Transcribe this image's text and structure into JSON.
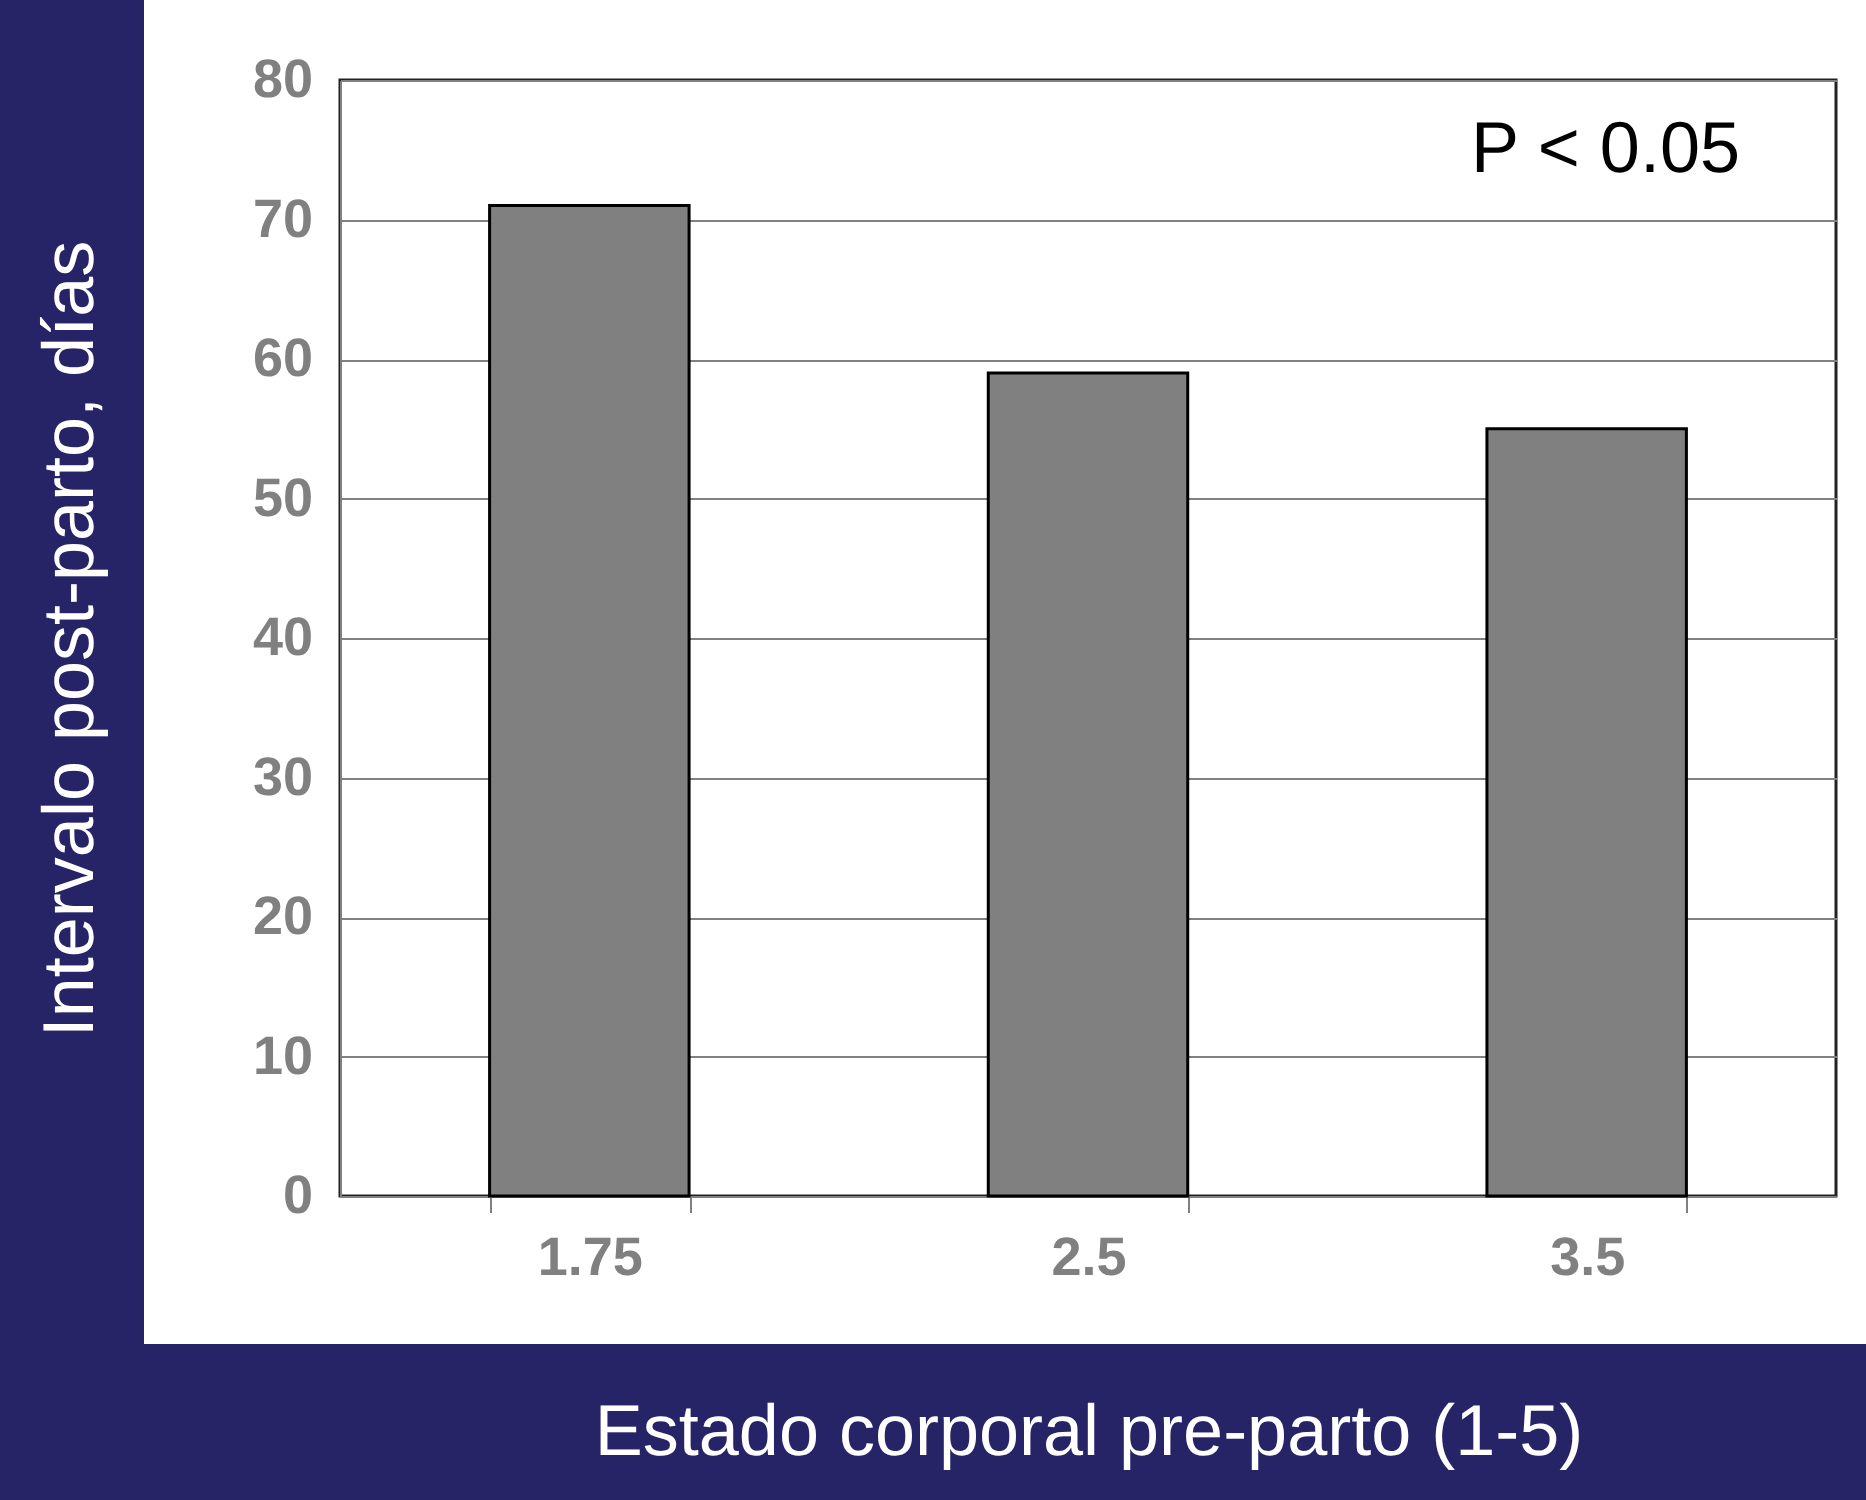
{
  "chart_data": {
    "type": "bar",
    "xlabel": "Estado corporal pre-parto (1-5)",
    "ylabel": "Intervalo post-parto, días",
    "categories": [
      "1.75",
      "2.5",
      "3.5"
    ],
    "values": [
      71,
      59,
      55
    ],
    "color": "#808080",
    "ylim": [
      0,
      80
    ],
    "yticks": [
      0,
      10,
      20,
      30,
      40,
      50,
      60,
      70,
      80
    ],
    "grid": "y",
    "annotations": [
      "P < 0.05"
    ]
  }
}
